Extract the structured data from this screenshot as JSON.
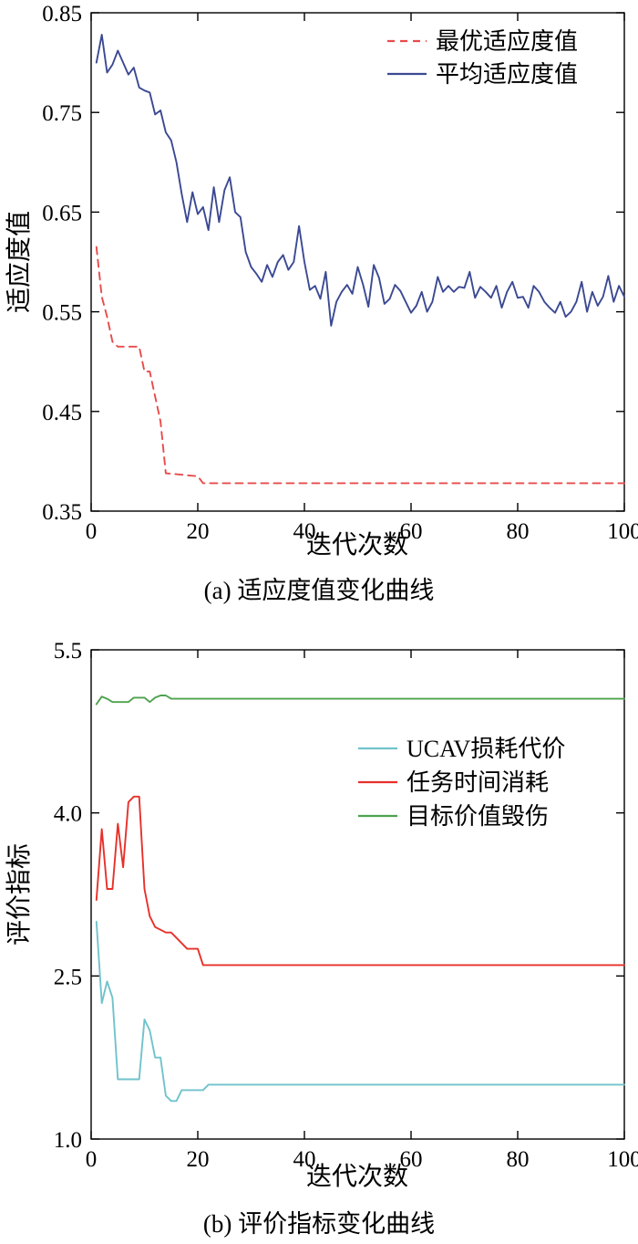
{
  "chart_data": [
    {
      "type": "line",
      "caption": "(a) 适应度值变化曲线",
      "xlabel": "迭代次数",
      "ylabel": "适应度值",
      "xlim": [
        0,
        100
      ],
      "ylim": [
        0.35,
        0.85
      ],
      "grid": false,
      "legend_position": "upper-right-inside",
      "xticks": {
        "values": [
          0,
          20,
          40,
          60,
          80,
          100
        ],
        "labels": [
          "0",
          "20",
          "40",
          "60",
          "80",
          "100"
        ]
      },
      "yticks": {
        "values": [
          0.35,
          0.45,
          0.55,
          0.65,
          0.75,
          0.85
        ],
        "labels": [
          "0.35",
          "0.45",
          "0.55",
          "0.65",
          "0.75",
          "0.85"
        ]
      },
      "series": [
        {
          "name": "最优适应度值",
          "color": "#e84b4b",
          "style": "dashed",
          "x": [
            1,
            2,
            3,
            4,
            5,
            9,
            10,
            11,
            12,
            13,
            14,
            20,
            21,
            100
          ],
          "y": [
            0.615,
            0.565,
            0.545,
            0.52,
            0.515,
            0.515,
            0.49,
            0.49,
            0.465,
            0.44,
            0.388,
            0.385,
            0.378,
            0.378
          ]
        },
        {
          "name": "平均适应度值",
          "color": "#3b4992",
          "style": "solid",
          "x": [
            1,
            2,
            3,
            4,
            5,
            6,
            7,
            8,
            9,
            10,
            11,
            12,
            13,
            14,
            15,
            16,
            17,
            18,
            19,
            20,
            21,
            22,
            23,
            24,
            25,
            26,
            27,
            28,
            29,
            30,
            31,
            32,
            33,
            34,
            35,
            36,
            37,
            38,
            39,
            40,
            41,
            42,
            43,
            44,
            45,
            46,
            47,
            48,
            49,
            50,
            51,
            52,
            53,
            54,
            55,
            56,
            57,
            58,
            59,
            60,
            61,
            62,
            63,
            64,
            65,
            66,
            67,
            68,
            69,
            70,
            71,
            72,
            73,
            74,
            75,
            76,
            77,
            78,
            79,
            80,
            81,
            82,
            83,
            84,
            85,
            86,
            87,
            88,
            89,
            90,
            91,
            92,
            93,
            94,
            95,
            96,
            97,
            98,
            99,
            100
          ],
          "y": [
            0.8,
            0.828,
            0.79,
            0.798,
            0.812,
            0.8,
            0.788,
            0.795,
            0.775,
            0.772,
            0.77,
            0.748,
            0.752,
            0.73,
            0.722,
            0.7,
            0.668,
            0.64,
            0.67,
            0.648,
            0.655,
            0.632,
            0.675,
            0.64,
            0.672,
            0.685,
            0.65,
            0.645,
            0.61,
            0.595,
            0.588,
            0.58,
            0.597,
            0.585,
            0.6,
            0.607,
            0.592,
            0.6,
            0.636,
            0.6,
            0.572,
            0.576,
            0.563,
            0.59,
            0.536,
            0.56,
            0.57,
            0.577,
            0.568,
            0.595,
            0.577,
            0.555,
            0.597,
            0.584,
            0.558,
            0.563,
            0.577,
            0.571,
            0.56,
            0.549,
            0.556,
            0.57,
            0.55,
            0.56,
            0.585,
            0.57,
            0.576,
            0.57,
            0.575,
            0.574,
            0.59,
            0.564,
            0.575,
            0.57,
            0.564,
            0.576,
            0.554,
            0.57,
            0.58,
            0.564,
            0.565,
            0.554,
            0.576,
            0.57,
            0.56,
            0.554,
            0.549,
            0.56,
            0.545,
            0.55,
            0.56,
            0.58,
            0.55,
            0.57,
            0.556,
            0.565,
            0.586,
            0.56,
            0.576,
            0.565
          ]
        }
      ]
    },
    {
      "type": "line",
      "caption": "(b) 评价指标变化曲线",
      "xlabel": "迭代次数",
      "ylabel": "评价指标",
      "xlim": [
        0,
        100
      ],
      "ylim": [
        1.0,
        5.5
      ],
      "grid": false,
      "legend_position": "center-right-inside",
      "xticks": {
        "values": [
          0,
          20,
          40,
          60,
          80,
          100
        ],
        "labels": [
          "0",
          "20",
          "40",
          "60",
          "80",
          "100"
        ]
      },
      "yticks": {
        "values": [
          1.0,
          2.5,
          4.0,
          5.5
        ],
        "labels": [
          "1.0",
          "2.5",
          "4.0",
          "5.5"
        ]
      },
      "series": [
        {
          "name": "UCAV损耗代价",
          "color": "#70c3cb",
          "style": "solid",
          "x": [
            1,
            2,
            3,
            4,
            5,
            9,
            10,
            11,
            12,
            13,
            14,
            15,
            16,
            17,
            21,
            22,
            100
          ],
          "y": [
            3.0,
            2.25,
            2.45,
            2.3,
            1.55,
            1.55,
            2.1,
            2.0,
            1.75,
            1.75,
            1.4,
            1.35,
            1.35,
            1.45,
            1.45,
            1.5,
            1.5
          ]
        },
        {
          "name": "任务时间消耗",
          "color": "#e8302a",
          "style": "solid",
          "x": [
            1,
            2,
            3,
            4,
            5,
            6,
            7,
            8,
            9,
            10,
            11,
            12,
            14,
            15,
            16,
            18,
            20,
            21,
            100
          ],
          "y": [
            3.2,
            3.85,
            3.3,
            3.3,
            3.9,
            3.5,
            4.1,
            4.15,
            4.15,
            3.3,
            3.05,
            2.95,
            2.9,
            2.9,
            2.85,
            2.75,
            2.75,
            2.6,
            2.6
          ]
        },
        {
          "name": "目标价值毁伤",
          "color": "#4ea24e",
          "style": "solid",
          "x": [
            1,
            2,
            3,
            4,
            7,
            8,
            10,
            11,
            12,
            13,
            14,
            15,
            16,
            100
          ],
          "y": [
            5.0,
            5.07,
            5.05,
            5.02,
            5.02,
            5.06,
            5.06,
            5.02,
            5.06,
            5.08,
            5.08,
            5.05,
            5.05,
            5.05
          ]
        }
      ]
    }
  ]
}
